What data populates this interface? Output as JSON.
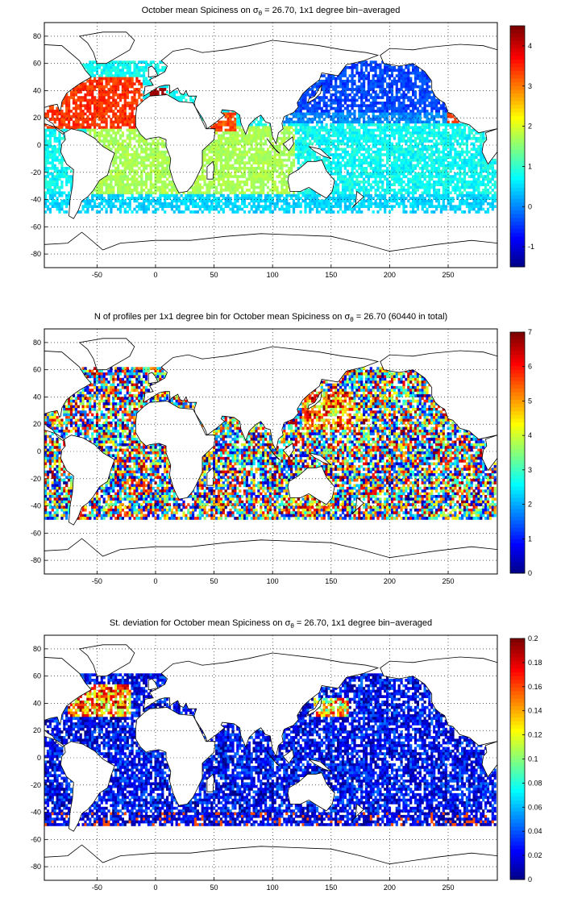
{
  "panels": [
    {
      "title_pre": "October mean Spiciness on ",
      "sigma_symbol": "σ",
      "sigma_sub": "θ",
      "title_post": " = 26.70, 1x1 degree bin−averaged",
      "colorbar_ticks": [
        "4",
        "3",
        "2",
        "1",
        "0",
        "-1"
      ],
      "colorbar_range": [
        -1.5,
        4.5
      ],
      "field": "spiciness-mean"
    },
    {
      "title_pre": "N of profiles per 1x1 degree bin for October mean Spiciness on ",
      "sigma_symbol": "σ",
      "sigma_sub": "θ",
      "title_post": " = 26.70 (60440 in total)",
      "colorbar_ticks": [
        "7",
        "6",
        "5",
        "4",
        "3",
        "2",
        "1",
        "0"
      ],
      "colorbar_range": [
        0,
        7
      ],
      "field": "profile-count"
    },
    {
      "title_pre": "St. deviation for October mean Spiciness on ",
      "sigma_symbol": "σ",
      "sigma_sub": "θ",
      "title_post": " = 26.70, 1x1 degree bin−averaged",
      "colorbar_ticks": [
        "0.2",
        "0.18",
        "0.16",
        "0.14",
        "0.12",
        "0.1",
        "0.08",
        "0.06",
        "0.04",
        "0.02",
        "0"
      ],
      "colorbar_range": [
        0,
        0.2
      ],
      "field": "spiciness-std"
    }
  ],
  "axes": {
    "x_ticks": [
      "-50",
      "0",
      "50",
      "100",
      "150",
      "200",
      "250"
    ],
    "y_ticks": [
      "80",
      "60",
      "40",
      "20",
      "0",
      "-20",
      "-40",
      "-60",
      "-80"
    ],
    "x_range": [
      -95,
      292
    ],
    "y_range": [
      -90,
      90
    ],
    "grid": "dotted"
  },
  "colormap": "jet",
  "colors": {
    "ocean_missing": "#ffffff",
    "land": "#ffffff",
    "coastline": "#000000"
  }
}
